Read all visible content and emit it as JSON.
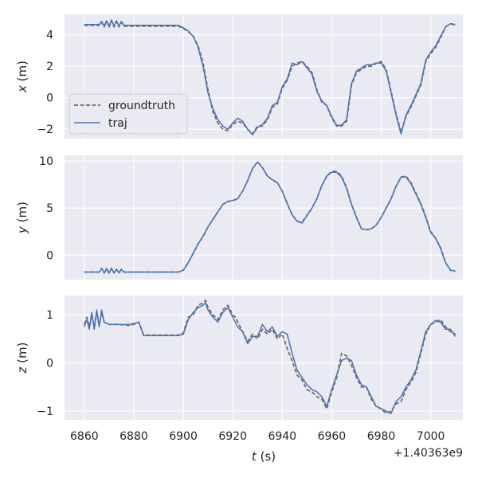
{
  "chart_data": {
    "type": "line",
    "style": {
      "background": "#eaeaf2",
      "grid": "#ffffff",
      "groundtruth_color": "#6e6e6e",
      "traj_color": "#4c72b0"
    },
    "x_label": "t (s)",
    "x_offset_label": "+1.40363e9",
    "xlim": [
      6852,
      7013
    ],
    "xticks": [
      "6860",
      "6880",
      "6900",
      "6920",
      "6940",
      "6960",
      "6980",
      "7000"
    ],
    "xticks_values": [
      6860,
      6880,
      6900,
      6920,
      6940,
      6960,
      6980,
      7000
    ],
    "legend": {
      "position": "lower-left",
      "entries": [
        "groundtruth",
        "traj"
      ]
    },
    "subplots": [
      {
        "y_label": "x (m)",
        "ylim": [
          -2.6,
          5.3
        ],
        "yticks": [
          "4",
          "2",
          "0",
          "−2"
        ],
        "yticks_values": [
          4,
          2,
          0,
          -2
        ],
        "series": [
          {
            "name": "groundtruth",
            "style": "dashed",
            "x": [
              6860,
              6864,
              6866,
              6867,
              6868,
              6869,
              6870,
              6871,
              6872,
              6873,
              6874,
              6875,
              6876,
              6880,
              6890,
              6898,
              6900,
              6902,
              6904,
              6906,
              6908,
              6910,
              6912,
              6914,
              6916,
              6918,
              6920,
              6922,
              6924,
              6926,
              6928,
              6930,
              6932,
              6934,
              6936,
              6938,
              6940,
              6942,
              6944,
              6946,
              6948,
              6950,
              6952,
              6954,
              6956,
              6958,
              6960,
              6962,
              6964,
              6966,
              6968,
              6970,
              6972,
              6974,
              6976,
              6978,
              6980,
              6982,
              6984,
              6986,
              6988,
              6990,
              6992,
              6994,
              6996,
              6998,
              7000,
              7002,
              7004,
              7006,
              7008,
              7010
            ],
            "y": [
              4.6,
              4.6,
              4.6,
              4.8,
              4.5,
              4.85,
              4.5,
              4.9,
              4.5,
              4.85,
              4.5,
              4.8,
              4.55,
              4.55,
              4.55,
              4.55,
              4.4,
              4.2,
              3.9,
              3.3,
              2.2,
              0.5,
              -0.9,
              -1.6,
              -2.0,
              -2.1,
              -1.7,
              -1.5,
              -1.6,
              -2.0,
              -2.3,
              -1.8,
              -1.8,
              -1.4,
              -0.6,
              -0.4,
              0.6,
              1.1,
              2.0,
              2.2,
              2.3,
              2.0,
              1.6,
              0.5,
              -0.3,
              -0.5,
              -1.3,
              -1.8,
              -1.8,
              -1.5,
              0.8,
              1.6,
              1.8,
              2.0,
              2.0,
              2.2,
              2.3,
              1.8,
              0.4,
              -1.0,
              -2.2,
              -1.2,
              -0.6,
              0.1,
              0.8,
              2.3,
              2.8,
              3.2,
              3.8,
              4.5,
              4.7,
              4.6
            ]
          },
          {
            "name": "traj",
            "style": "solid",
            "x": [
              6860,
              6864,
              6866,
              6867,
              6868,
              6869,
              6870,
              6871,
              6872,
              6873,
              6874,
              6875,
              6876,
              6880,
              6890,
              6898,
              6900,
              6902,
              6904,
              6906,
              6908,
              6910,
              6912,
              6914,
              6916,
              6918,
              6920,
              6922,
              6924,
              6926,
              6928,
              6930,
              6932,
              6934,
              6936,
              6938,
              6940,
              6942,
              6944,
              6946,
              6948,
              6950,
              6952,
              6954,
              6956,
              6958,
              6960,
              6962,
              6964,
              6966,
              6968,
              6970,
              6972,
              6974,
              6976,
              6978,
              6980,
              6982,
              6984,
              6986,
              6988,
              6990,
              6992,
              6994,
              6996,
              6998,
              7000,
              7002,
              7004,
              7006,
              7008,
              7010
            ],
            "y": [
              4.65,
              4.65,
              4.65,
              4.85,
              4.55,
              4.9,
              4.55,
              4.95,
              4.55,
              4.9,
              4.55,
              4.85,
              4.6,
              4.6,
              4.6,
              4.6,
              4.45,
              4.25,
              3.9,
              3.2,
              2.0,
              0.3,
              -0.7,
              -1.4,
              -1.8,
              -2.0,
              -1.6,
              -1.3,
              -1.5,
              -2.0,
              -2.35,
              -1.9,
              -1.7,
              -1.3,
              -0.5,
              -0.3,
              0.7,
              1.2,
              2.2,
              2.1,
              2.3,
              1.9,
              1.5,
              0.4,
              -0.2,
              -0.5,
              -1.2,
              -1.75,
              -1.75,
              -1.4,
              0.9,
              1.7,
              1.9,
              2.1,
              2.1,
              2.2,
              2.2,
              1.7,
              0.3,
              -1.1,
              -2.3,
              -1.1,
              -0.5,
              0.2,
              0.9,
              2.4,
              2.9,
              3.3,
              3.9,
              4.5,
              4.7,
              4.65
            ]
          }
        ]
      },
      {
        "y_label": "y (m)",
        "ylim": [
          -2.6,
          10.6
        ],
        "yticks": [
          "10",
          "5",
          "0"
        ],
        "yticks_values": [
          10,
          5,
          0
        ],
        "series": [
          {
            "name": "groundtruth",
            "style": "dashed",
            "x": [
              6860,
              6864,
              6866,
              6867,
              6868,
              6869,
              6870,
              6871,
              6872,
              6873,
              6874,
              6875,
              6876,
              6880,
              6890,
              6898,
              6900,
              6902,
              6904,
              6906,
              6908,
              6910,
              6912,
              6914,
              6916,
              6918,
              6920,
              6922,
              6924,
              6926,
              6928,
              6930,
              6932,
              6934,
              6936,
              6938,
              6940,
              6942,
              6944,
              6946,
              6948,
              6950,
              6952,
              6954,
              6956,
              6958,
              6960,
              6962,
              6964,
              6966,
              6968,
              6970,
              6972,
              6974,
              6976,
              6978,
              6980,
              6982,
              6984,
              6986,
              6988,
              6990,
              6992,
              6994,
              6996,
              6998,
              7000,
              7002,
              7004,
              7006,
              7008,
              7010
            ],
            "y": [
              -1.8,
              -1.8,
              -1.8,
              -1.4,
              -1.9,
              -1.5,
              -1.9,
              -1.4,
              -1.9,
              -1.5,
              -1.9,
              -1.5,
              -1.8,
              -1.8,
              -1.8,
              -1.8,
              -1.6,
              -0.8,
              0.2,
              1.2,
              2.0,
              3.0,
              3.8,
              4.6,
              5.4,
              5.7,
              5.8,
              6.0,
              6.8,
              7.9,
              9.2,
              9.9,
              9.3,
              8.4,
              8.0,
              7.7,
              6.8,
              5.5,
              4.3,
              3.6,
              3.5,
              4.2,
              5.0,
              6.0,
              7.4,
              8.4,
              8.9,
              8.9,
              8.4,
              7.2,
              5.4,
              4.0,
              2.8,
              2.7,
              2.8,
              3.2,
              4.0,
              5.0,
              6.0,
              7.3,
              8.3,
              8.4,
              7.7,
              6.6,
              5.5,
              4.1,
              2.5,
              1.8,
              0.8,
              -0.8,
              -1.6,
              -1.7
            ]
          },
          {
            "name": "traj",
            "style": "solid",
            "x": [
              6860,
              6864,
              6866,
              6867,
              6868,
              6869,
              6870,
              6871,
              6872,
              6873,
              6874,
              6875,
              6876,
              6880,
              6890,
              6898,
              6900,
              6902,
              6904,
              6906,
              6908,
              6910,
              6912,
              6914,
              6916,
              6918,
              6920,
              6922,
              6924,
              6926,
              6928,
              6930,
              6932,
              6934,
              6936,
              6938,
              6940,
              6942,
              6944,
              6946,
              6948,
              6950,
              6952,
              6954,
              6956,
              6958,
              6960,
              6962,
              6964,
              6966,
              6968,
              6970,
              6972,
              6974,
              6976,
              6978,
              6980,
              6982,
              6984,
              6986,
              6988,
              6990,
              6992,
              6994,
              6996,
              6998,
              7000,
              7002,
              7004,
              7006,
              7008,
              7010
            ],
            "y": [
              -1.8,
              -1.8,
              -1.8,
              -1.4,
              -1.9,
              -1.4,
              -1.9,
              -1.4,
              -1.9,
              -1.5,
              -1.9,
              -1.5,
              -1.8,
              -1.8,
              -1.8,
              -1.8,
              -1.6,
              -0.8,
              0.2,
              1.2,
              2.0,
              3.0,
              3.8,
              4.6,
              5.4,
              5.7,
              5.8,
              6.0,
              6.8,
              7.9,
              9.2,
              9.9,
              9.3,
              8.4,
              8.0,
              7.7,
              6.8,
              5.5,
              4.3,
              3.6,
              3.4,
              4.2,
              5.0,
              6.0,
              7.4,
              8.4,
              8.8,
              8.8,
              8.3,
              7.1,
              5.4,
              4.0,
              2.8,
              2.7,
              2.8,
              3.2,
              4.0,
              5.0,
              6.0,
              7.3,
              8.3,
              8.3,
              7.6,
              6.5,
              5.4,
              4.0,
              2.4,
              1.8,
              0.7,
              -0.8,
              -1.6,
              -1.7
            ]
          }
        ]
      },
      {
        "y_label": "z (m)",
        "ylim": [
          -1.18,
          1.4
        ],
        "yticks": [
          "1",
          "0",
          "−1"
        ],
        "yticks_values": [
          1,
          0,
          -1
        ],
        "series": [
          {
            "name": "groundtruth",
            "style": "dashed",
            "x": [
              6860,
              6861,
              6862,
              6863,
              6864,
              6865,
              6866,
              6867,
              6868,
              6870,
              6874,
              6878,
              6880,
              6882,
              6884,
              6890,
              6898,
              6900,
              6902,
              6904,
              6906,
              6908,
              6909,
              6910,
              6912,
              6914,
              6916,
              6918,
              6920,
              6921,
              6922,
              6924,
              6926,
              6928,
              6930,
              6932,
              6934,
              6936,
              6938,
              6940,
              6942,
              6944,
              6946,
              6948,
              6950,
              6952,
              6954,
              6956,
              6958,
              6960,
              6962,
              6964,
              6966,
              6968,
              6970,
              6972,
              6974,
              6976,
              6978,
              6980,
              6982,
              6984,
              6986,
              6988,
              6990,
              6992,
              6994,
              6996,
              6998,
              7000,
              7002,
              7004,
              7006,
              7008,
              7010
            ],
            "y": [
              0.8,
              0.95,
              0.75,
              1.0,
              0.75,
              1.05,
              0.8,
              1.05,
              0.85,
              0.8,
              0.8,
              0.78,
              0.8,
              0.85,
              0.58,
              0.58,
              0.58,
              0.62,
              0.95,
              1.0,
              1.2,
              1.25,
              1.3,
              1.15,
              1.0,
              0.9,
              1.1,
              1.2,
              1.0,
              0.95,
              0.85,
              0.65,
              0.45,
              0.6,
              0.5,
              0.7,
              0.6,
              0.7,
              0.5,
              0.6,
              0.3,
              0.05,
              -0.25,
              -0.35,
              -0.55,
              -0.6,
              -0.7,
              -0.75,
              -0.95,
              -0.6,
              -0.3,
              0.2,
              0.15,
              -0.05,
              -0.3,
              -0.5,
              -0.5,
              -0.75,
              -0.9,
              -0.95,
              -1.05,
              -1.0,
              -0.85,
              -0.8,
              -0.55,
              -0.4,
              -0.2,
              0.2,
              0.6,
              0.8,
              0.85,
              0.9,
              0.75,
              0.65,
              0.6
            ]
          },
          {
            "name": "traj",
            "style": "solid",
            "x": [
              6860,
              6861,
              6862,
              6863,
              6864,
              6865,
              6866,
              6867,
              6868,
              6870,
              6874,
              6878,
              6880,
              6882,
              6884,
              6890,
              6898,
              6900,
              6902,
              6904,
              6906,
              6908,
              6909,
              6910,
              6912,
              6914,
              6916,
              6918,
              6920,
              6921,
              6922,
              6924,
              6926,
              6928,
              6930,
              6932,
              6934,
              6936,
              6938,
              6940,
              6942,
              6944,
              6946,
              6948,
              6950,
              6952,
              6954,
              6956,
              6958,
              6960,
              6962,
              6964,
              6966,
              6968,
              6970,
              6972,
              6974,
              6976,
              6978,
              6980,
              6982,
              6984,
              6986,
              6988,
              6990,
              6992,
              6994,
              6996,
              6998,
              7000,
              7002,
              7004,
              7006,
              7008,
              7010
            ],
            "y": [
              0.75,
              0.9,
              0.7,
              1.05,
              0.7,
              1.1,
              0.75,
              1.1,
              0.85,
              0.8,
              0.8,
              0.8,
              0.82,
              0.85,
              0.57,
              0.57,
              0.57,
              0.6,
              0.9,
              1.05,
              1.15,
              1.2,
              1.25,
              1.1,
              0.95,
              0.85,
              1.05,
              1.15,
              0.95,
              0.85,
              0.75,
              0.65,
              0.4,
              0.55,
              0.55,
              0.8,
              0.65,
              0.75,
              0.55,
              0.65,
              0.6,
              0.2,
              -0.15,
              -0.3,
              -0.45,
              -0.55,
              -0.6,
              -0.7,
              -0.9,
              -0.55,
              -0.25,
              0.05,
              0.1,
              0.05,
              -0.25,
              -0.45,
              -0.5,
              -0.7,
              -0.9,
              -0.95,
              -1.0,
              -1.05,
              -0.8,
              -0.7,
              -0.5,
              -0.35,
              -0.15,
              0.25,
              0.65,
              0.8,
              0.88,
              0.85,
              0.7,
              0.7,
              0.55
            ]
          }
        ]
      }
    ]
  }
}
